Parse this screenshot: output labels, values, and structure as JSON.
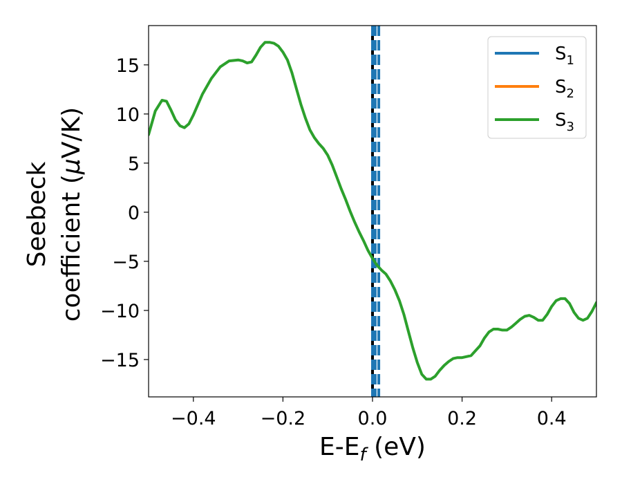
{
  "chart_data": {
    "type": "line",
    "title": "",
    "xlabel": {
      "main": "E-E",
      "sub": "f",
      "tail": " (eV)"
    },
    "ylabel": {
      "line1": "Seebeck",
      "line2_a": "coefficient  (",
      "line2_mu": "μ",
      "line2_b": "V/K)"
    },
    "xlim": [
      -0.5,
      0.5
    ],
    "ylim": [
      -18.8,
      19.0
    ],
    "xticks": [
      -0.4,
      -0.2,
      0.0,
      0.2,
      0.4
    ],
    "xtick_labels": [
      "−0.4",
      "−0.2",
      "0.0",
      "0.2",
      "0.4"
    ],
    "yticks": [
      -15,
      -10,
      -5,
      0,
      5,
      10,
      15
    ],
    "ytick_labels": [
      "−15",
      "−10",
      "−5",
      "0",
      "5",
      "10",
      "15"
    ],
    "grid": false,
    "legend_placement": "top-right",
    "legend": [
      {
        "base": "S",
        "sub": "1",
        "color": "#1f77b4"
      },
      {
        "base": "S",
        "sub": "2",
        "color": "#ff7f0e"
      },
      {
        "base": "S",
        "sub": "3",
        "color": "#2ca02c"
      }
    ],
    "series": [
      {
        "color": "#2ca02c",
        "x": [
          -0.5,
          -0.485,
          -0.47,
          -0.46,
          -0.45,
          -0.44,
          -0.43,
          -0.42,
          -0.41,
          -0.4,
          -0.38,
          -0.36,
          -0.34,
          -0.32,
          -0.3,
          -0.29,
          -0.28,
          -0.27,
          -0.26,
          -0.25,
          -0.24,
          -0.23,
          -0.22,
          -0.21,
          -0.2,
          -0.19,
          -0.18,
          -0.17,
          -0.16,
          -0.15,
          -0.14,
          -0.13,
          -0.12,
          -0.11,
          -0.1,
          -0.09,
          -0.08,
          -0.07,
          -0.06,
          -0.05,
          -0.04,
          -0.03,
          -0.02,
          -0.01,
          0.0,
          0.01,
          0.02,
          0.03,
          0.04,
          0.05,
          0.06,
          0.07,
          0.08,
          0.09,
          0.1,
          0.11,
          0.12,
          0.13,
          0.14,
          0.15,
          0.16,
          0.17,
          0.18,
          0.19,
          0.2,
          0.22,
          0.24,
          0.25,
          0.26,
          0.27,
          0.28,
          0.29,
          0.3,
          0.31,
          0.32,
          0.33,
          0.34,
          0.35,
          0.36,
          0.37,
          0.38,
          0.39,
          0.4,
          0.41,
          0.42,
          0.43,
          0.44,
          0.45,
          0.46,
          0.47,
          0.48,
          0.49,
          0.5
        ],
        "y": [
          7.9,
          10.3,
          11.4,
          11.3,
          10.4,
          9.4,
          8.8,
          8.6,
          9.0,
          9.9,
          12.0,
          13.6,
          14.8,
          15.4,
          15.5,
          15.4,
          15.2,
          15.3,
          16.0,
          16.8,
          17.3,
          17.3,
          17.2,
          16.9,
          16.3,
          15.5,
          14.2,
          12.6,
          11.0,
          9.6,
          8.4,
          7.6,
          7.0,
          6.5,
          5.8,
          4.8,
          3.6,
          2.4,
          1.3,
          0.1,
          -1.0,
          -2.0,
          -2.9,
          -3.9,
          -4.7,
          -5.4,
          -5.9,
          -6.3,
          -7.0,
          -7.9,
          -9.0,
          -10.4,
          -12.1,
          -13.8,
          -15.3,
          -16.5,
          -17.0,
          -17.0,
          -16.7,
          -16.1,
          -15.6,
          -15.2,
          -14.9,
          -14.8,
          -14.8,
          -14.6,
          -13.6,
          -12.8,
          -12.2,
          -11.9,
          -11.9,
          -12.0,
          -12.0,
          -11.7,
          -11.3,
          -10.9,
          -10.6,
          -10.5,
          -10.7,
          -11.0,
          -11.0,
          -10.4,
          -9.6,
          -9.0,
          -8.8,
          -8.8,
          -9.3,
          -10.2,
          -10.8,
          -11.0,
          -10.8,
          -10.1,
          -9.2
        ]
      }
    ],
    "vlines": [
      {
        "x": 0.0,
        "color": "#000000",
        "style": "solid"
      },
      {
        "x": 0.0,
        "color": "#1f77b4",
        "style": "dashed"
      },
      {
        "x": 0.006,
        "color": "#1f77b4",
        "style": "dashed"
      },
      {
        "x": 0.014,
        "color": "#1f77b4",
        "style": "dashed"
      }
    ]
  }
}
